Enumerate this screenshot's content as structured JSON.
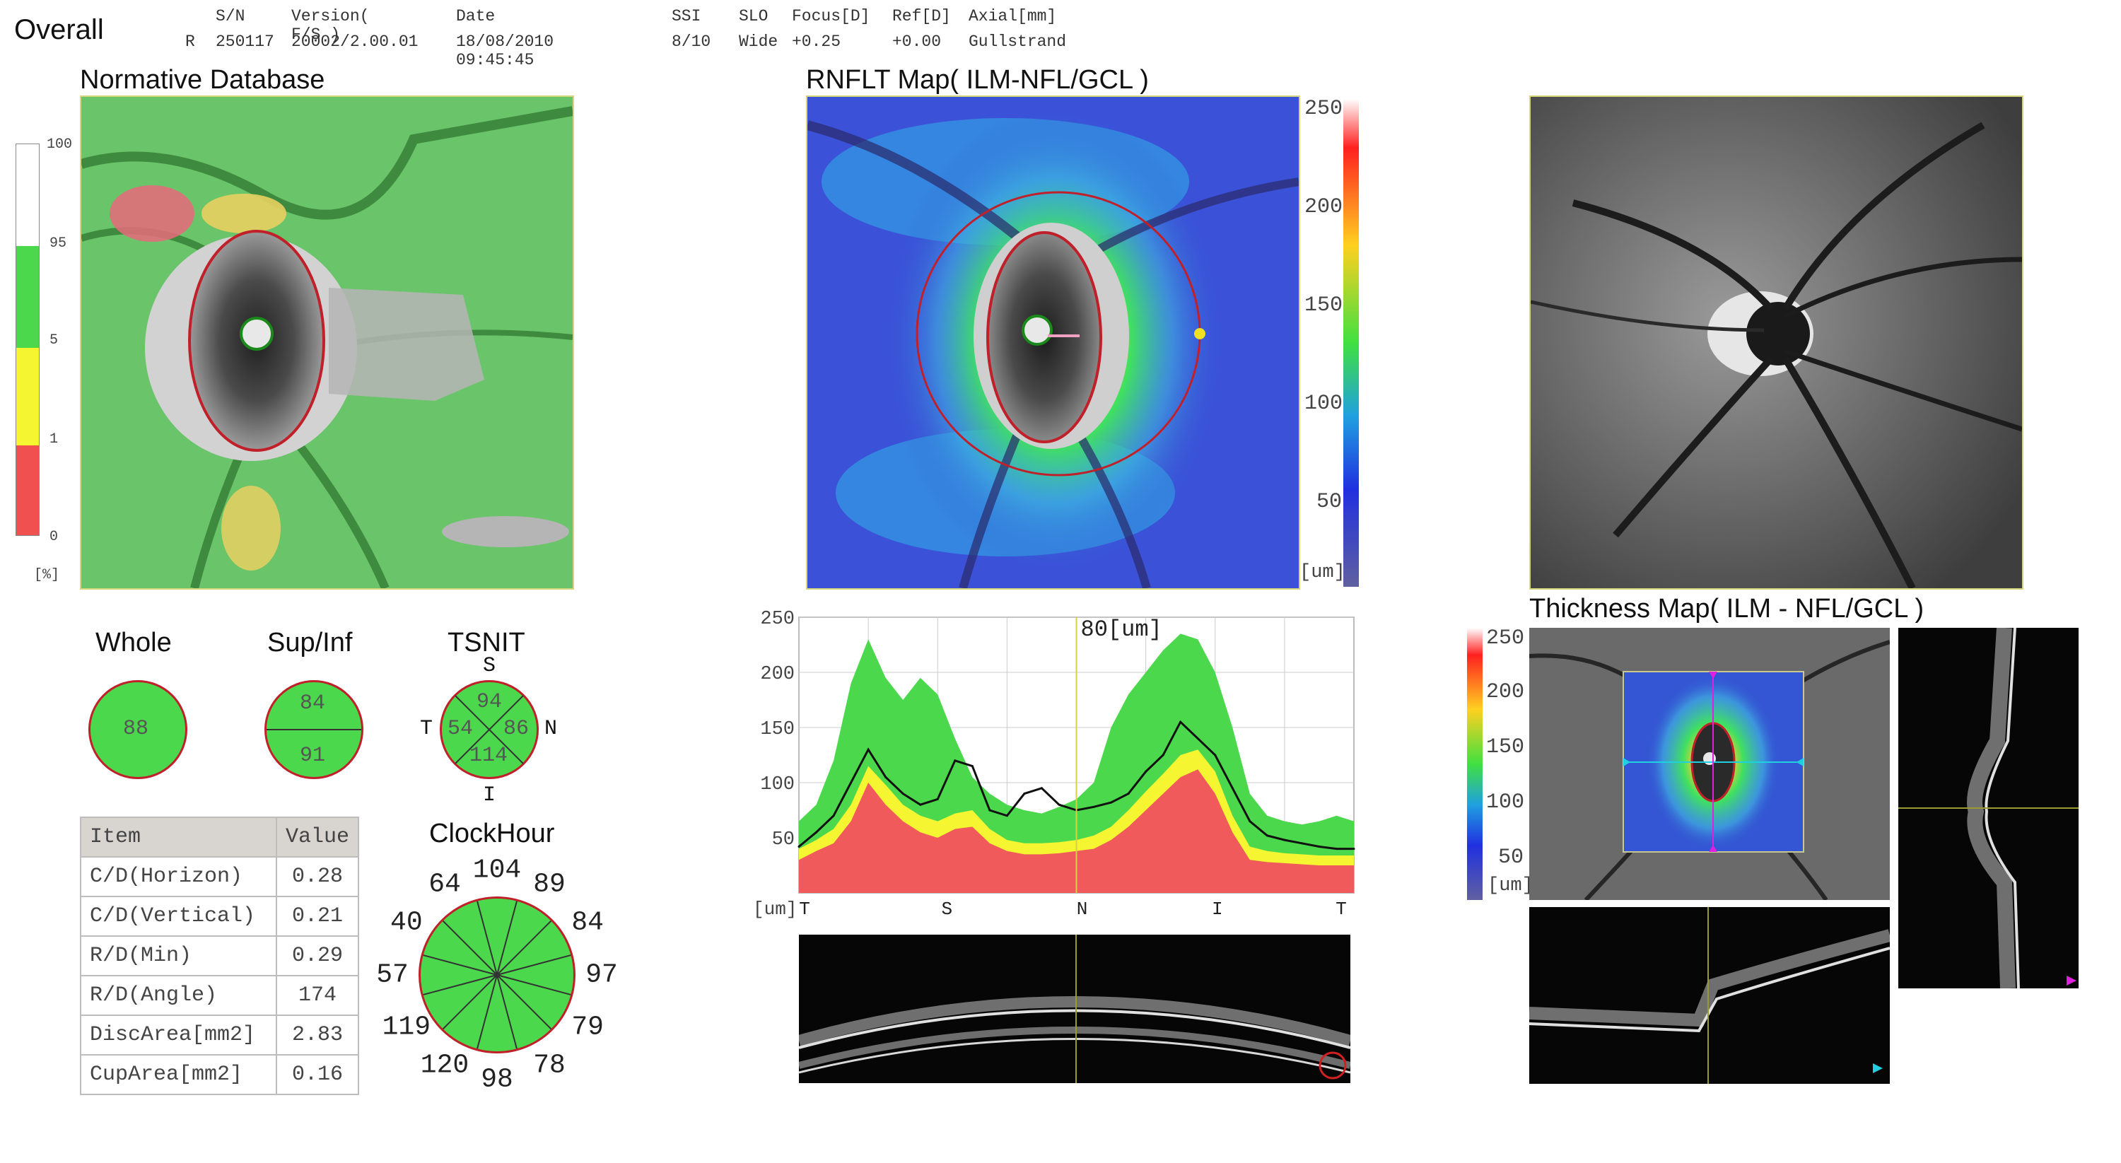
{
  "report": {
    "title": "Overall",
    "eye": "R",
    "columns": [
      "S/N",
      "Version( F/S )",
      "Date",
      "SSI",
      "SLO",
      "Focus[D]",
      "Ref[D]",
      "Axial[mm]"
    ],
    "values": [
      "250117",
      "20002/2.00.01",
      "18/08/2010 09:45:45",
      "8/10",
      "Wide",
      "+0.25",
      "+0.00",
      "Gullstrand"
    ]
  },
  "normative": {
    "title": "Normative Database",
    "scale_labels": [
      "100",
      "95",
      "5",
      "1",
      "0"
    ],
    "unit": "[%]",
    "colors": {
      "white": "#ffffff",
      "green": "#4cd84c",
      "yellow": "#f5f532",
      "red": "#f05050"
    }
  },
  "rnflt_map": {
    "title": "RNFLT Map( ILM-NFL/GCL )",
    "scale_labels": [
      "250",
      "200",
      "150",
      "100",
      "50"
    ],
    "unit": "[um]"
  },
  "summary": {
    "whole": {
      "label": "Whole",
      "value": "88"
    },
    "supinf": {
      "label": "Sup/Inf",
      "sup": "84",
      "inf": "91"
    },
    "tsnit": {
      "label": "TSNIT",
      "S": "94",
      "T": "54",
      "N": "86",
      "I": "114",
      "dir_S": "S",
      "dir_T": "T",
      "dir_N": "N",
      "dir_I": "I"
    }
  },
  "params_table": {
    "headers": [
      "Item",
      "Value"
    ],
    "rows": [
      {
        "item": "C/D(Horizon)",
        "value": "0.28"
      },
      {
        "item": "C/D(Vertical)",
        "value": "0.21"
      },
      {
        "item": "R/D(Min)",
        "value": "0.29"
      },
      {
        "item": "R/D(Angle)",
        "value": "174"
      },
      {
        "item": "DiscArea[mm2]",
        "value": "2.83"
      },
      {
        "item": "CupArea[mm2]",
        "value": "0.16"
      }
    ]
  },
  "clockhour": {
    "title": "ClockHour",
    "values": [
      "89",
      "84",
      "97",
      "79",
      "78",
      "98",
      "120",
      "119",
      "57",
      "40",
      "64",
      "104"
    ]
  },
  "tsnit_graph": {
    "cursor_value": "80",
    "cursor_unit": "[um]",
    "unit": "[um]"
  },
  "thickness_map": {
    "title": "Thickness Map( ILM - NFL/GCL )",
    "scale_labels": [
      "250",
      "200",
      "150",
      "100",
      "50"
    ],
    "unit": "[um]"
  },
  "chart_data": {
    "type": "area",
    "xlabel": "",
    "ylabel": "",
    "ylim": [
      0,
      250
    ],
    "y_ticks": [
      "250",
      "200",
      "150",
      "100",
      "50"
    ],
    "x_ticks": [
      "T",
      "S",
      "N",
      "I",
      "T"
    ],
    "x": [
      0,
      8,
      16,
      24,
      32,
      40,
      48,
      56,
      64,
      72,
      80,
      88,
      96,
      104,
      112,
      120,
      128,
      136,
      144,
      152,
      160,
      168,
      176,
      184,
      192,
      200,
      208,
      216,
      224,
      232,
      240,
      248,
      256
    ],
    "series": [
      {
        "name": "",
        "color": "#f05a5a",
        "values": [
          30,
          38,
          45,
          65,
          100,
          80,
          65,
          55,
          50,
          58,
          60,
          45,
          38,
          35,
          35,
          36,
          38,
          40,
          48,
          60,
          75,
          90,
          105,
          112,
          90,
          55,
          30,
          28,
          27,
          26,
          25,
          25,
          25
        ]
      },
      {
        "name": "",
        "color": "#f5f532",
        "values": [
          40,
          48,
          58,
          80,
          115,
          98,
          80,
          70,
          65,
          72,
          75,
          58,
          48,
          45,
          45,
          46,
          48,
          52,
          60,
          75,
          92,
          108,
          125,
          130,
          110,
          70,
          42,
          38,
          36,
          35,
          34,
          34,
          34
        ]
      },
      {
        "name": "",
        "color": "#4cd84c",
        "values": [
          65,
          80,
          120,
          190,
          230,
          195,
          175,
          195,
          180,
          140,
          105,
          90,
          80,
          75,
          72,
          78,
          85,
          100,
          150,
          180,
          200,
          220,
          235,
          230,
          200,
          150,
          90,
          70,
          65,
          62,
          65,
          70,
          65
        ]
      },
      {
        "name": "",
        "color": "#111111",
        "values": [
          42,
          55,
          70,
          100,
          130,
          105,
          90,
          80,
          85,
          120,
          115,
          75,
          70,
          90,
          95,
          80,
          75,
          78,
          82,
          90,
          110,
          125,
          155,
          140,
          125,
          95,
          65,
          52,
          48,
          45,
          42,
          40,
          40
        ]
      }
    ]
  }
}
